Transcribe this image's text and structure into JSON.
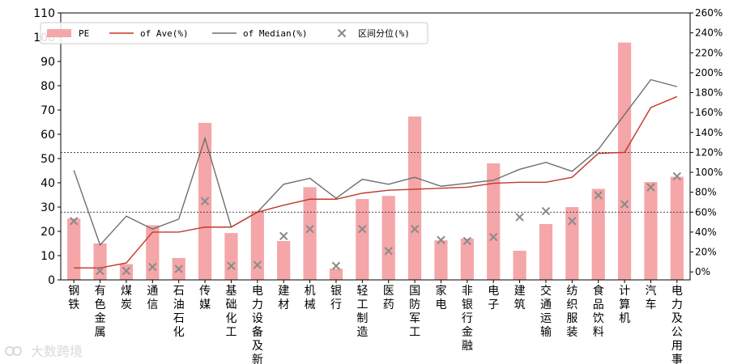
{
  "chart_data": {
    "type": "bar",
    "categories": [
      "钢铁",
      "有色金属",
      "煤炭",
      "通信",
      "石油石化",
      "传媒",
      "基础化工",
      "电力设备及新",
      "建材",
      "机械",
      "银行",
      "轻工制造",
      "医药",
      "国防军工",
      "家电",
      "非银行金融",
      "电子",
      "建筑",
      "交通运输",
      "纺织服装",
      "食品饮料",
      "计算机",
      "汽车",
      "电力及公用事"
    ],
    "series": [
      {
        "name": "PE",
        "type": "bar",
        "axis": "left",
        "color": "#f4a6a8",
        "values": [
          25.3,
          15.0,
          6.5,
          22.5,
          9.0,
          64.7,
          19.3,
          28.4,
          16.0,
          38.2,
          4.6,
          33.3,
          34.6,
          67.3,
          16.3,
          17.0,
          48.0,
          12.0,
          23.0,
          30.0,
          37.5,
          97.8,
          40.3,
          42.5
        ]
      },
      {
        "name": "of Ave(%)",
        "type": "line",
        "axis": "right",
        "color": "#c0392b",
        "values": [
          4,
          4,
          9,
          40,
          40,
          45,
          45,
          60,
          67,
          73,
          73,
          79,
          82,
          83,
          84,
          85,
          89,
          90,
          90,
          95,
          119,
          120,
          165,
          176
        ]
      },
      {
        "name": "of Median(%)",
        "type": "line",
        "axis": "right",
        "color": "#6e6e6e",
        "values": [
          102,
          27,
          56,
          43,
          53,
          134,
          45,
          60,
          88,
          94,
          74,
          93,
          88,
          95,
          86,
          89,
          92,
          103,
          110,
          101,
          123,
          158,
          193,
          186
        ]
      },
      {
        "name": "区间分位(%)",
        "type": "scatter",
        "axis": "right",
        "color": "#8a8a8a",
        "values": [
          51,
          1,
          1,
          5,
          3,
          71,
          6,
          7,
          36,
          43,
          6,
          43,
          21,
          43,
          32,
          31,
          35,
          55,
          61,
          51,
          77,
          68,
          85,
          96
        ]
      }
    ],
    "ylim": [
      0,
      110
    ],
    "yticks": [
      0,
      10,
      20,
      30,
      40,
      50,
      60,
      70,
      80,
      90,
      100,
      110
    ],
    "y2lim": [
      -8,
      260
    ],
    "y2ticks": [
      "0%",
      "20%",
      "40%",
      "60%",
      "80%",
      "100%",
      "120%",
      "140%",
      "160%",
      "180%",
      "200%",
      "220%",
      "240%",
      "260%"
    ],
    "hlines_right_axis": [
      120,
      60
    ],
    "legend": {
      "placement": "top-left",
      "entries": [
        "PE",
        "of Ave(%)",
        "of Median(%)",
        "区间分位(%)"
      ]
    },
    "grid": false
  },
  "watermark": {
    "text": "大数跨境"
  }
}
